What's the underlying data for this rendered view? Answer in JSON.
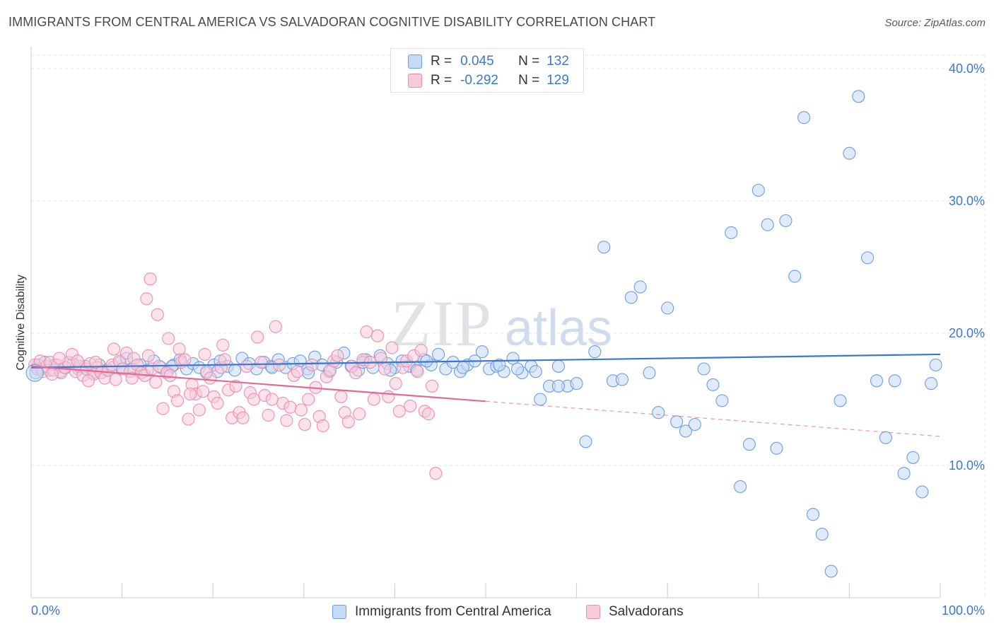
{
  "title": "IMMIGRANTS FROM CENTRAL AMERICA VS SALVADORAN COGNITIVE DISABILITY CORRELATION CHART",
  "source": "Source: ZipAtlas.com",
  "watermark": {
    "zip": "ZIP",
    "atlas": "atlas"
  },
  "stats": [
    {
      "r_label": "R =",
      "r_value": "0.045",
      "n_label": "N =",
      "n_value": "132",
      "color": "#6c9ee0",
      "fill": "#c5daf6"
    },
    {
      "r_label": "R =",
      "r_value": "-0.292",
      "n_label": "N =",
      "n_value": "129",
      "color": "#ec8fae",
      "fill": "#f9cad9"
    }
  ],
  "legend": [
    {
      "label": "Immigrants from Central America",
      "color": "#6c9ee0",
      "fill": "#c5daf6"
    },
    {
      "label": "Salvadorans",
      "color": "#ec8fae",
      "fill": "#f9cad9"
    }
  ],
  "chart_data": {
    "type": "scatter",
    "title": "IMMIGRANTS FROM CENTRAL AMERICA VS SALVADORAN COGNITIVE DISABILITY CORRELATION CHART",
    "xlabel": "",
    "ylabel": "Cognitive Disability",
    "xlim": [
      0,
      100
    ],
    "ylim": [
      0,
      40
    ],
    "x_ticks": [
      "0.0%",
      "100.0%"
    ],
    "y_ticks": [
      {
        "value": 10,
        "label": "10.0%"
      },
      {
        "value": 20,
        "label": "20.0%"
      },
      {
        "value": 30,
        "label": "30.0%"
      },
      {
        "value": 40,
        "label": "40.0%"
      }
    ],
    "grid": true,
    "legend_position": "bottom",
    "series": [
      {
        "name": "Immigrants from Central America",
        "color": "#3a78d0",
        "fill": "#c5daf6",
        "edge": "#6c9ee0",
        "trend": {
          "x": [
            0,
            100
          ],
          "y": [
            17.4,
            18.4
          ],
          "dash_from": null
        },
        "points": [
          [
            0.5,
            17.0
          ],
          [
            0.8,
            17.6
          ],
          [
            1.1,
            17.3
          ],
          [
            1.5,
            17.8
          ],
          [
            2.0,
            17.2
          ],
          [
            2.6,
            17.6
          ],
          [
            3.2,
            17.1
          ],
          [
            3.8,
            17.4
          ],
          [
            4.6,
            17.7
          ],
          [
            5.2,
            17.3
          ],
          [
            6.0,
            17.5
          ],
          [
            6.8,
            17.0
          ],
          [
            7.5,
            17.6
          ],
          [
            8.3,
            17.2
          ],
          [
            9.0,
            17.4
          ],
          [
            9.8,
            17.8
          ],
          [
            10.5,
            18.1
          ],
          [
            11.2,
            17.3
          ],
          [
            12.0,
            17.6
          ],
          [
            12.8,
            17.2
          ],
          [
            13.5,
            17.9
          ],
          [
            14.3,
            17.4
          ],
          [
            15.0,
            17.1
          ],
          [
            15.7,
            17.6
          ],
          [
            16.4,
            18.0
          ],
          [
            17.1,
            17.3
          ],
          [
            17.8,
            17.7
          ],
          [
            18.5,
            17.4
          ],
          [
            19.3,
            17.0
          ],
          [
            20.1,
            17.6
          ],
          [
            20.8,
            17.9
          ],
          [
            21.6,
            17.5
          ],
          [
            22.4,
            17.2
          ],
          [
            23.2,
            18.1
          ],
          [
            24.0,
            17.7
          ],
          [
            24.8,
            17.3
          ],
          [
            25.6,
            17.8
          ],
          [
            26.4,
            17.5
          ],
          [
            27.2,
            18.0
          ],
          [
            28.0,
            17.4
          ],
          [
            28.8,
            17.7
          ],
          [
            29.6,
            17.9
          ],
          [
            30.4,
            17.3
          ],
          [
            31.2,
            18.2
          ],
          [
            32.0,
            17.6
          ],
          [
            32.8,
            17.1
          ],
          [
            33.6,
            17.8
          ],
          [
            34.4,
            18.5
          ],
          [
            35.2,
            17.5
          ],
          [
            36.0,
            17.2
          ],
          [
            36.8,
            18.0
          ],
          [
            37.6,
            17.4
          ],
          [
            38.4,
            18.3
          ],
          [
            39.2,
            17.7
          ],
          [
            40.0,
            17.4
          ],
          [
            40.8,
            17.9
          ],
          [
            41.6,
            17.5
          ],
          [
            42.4,
            17.2
          ],
          [
            43.2,
            18.0
          ],
          [
            44.0,
            17.6
          ],
          [
            44.8,
            18.4
          ],
          [
            45.6,
            17.3
          ],
          [
            46.4,
            17.8
          ],
          [
            47.2,
            17.1
          ],
          [
            48.0,
            17.6
          ],
          [
            48.8,
            17.9
          ],
          [
            49.6,
            18.6
          ],
          [
            50.4,
            17.3
          ],
          [
            51.2,
            17.5
          ],
          [
            52.0,
            17.1
          ],
          [
            53.0,
            18.1
          ],
          [
            54.0,
            17.0
          ],
          [
            55.0,
            17.5
          ],
          [
            56.0,
            15.0
          ],
          [
            57.0,
            16.0
          ],
          [
            58.0,
            17.5
          ],
          [
            59.0,
            16.0
          ],
          [
            60.0,
            16.2
          ],
          [
            61.0,
            11.8
          ],
          [
            62.0,
            18.6
          ],
          [
            63.0,
            26.5
          ],
          [
            64.0,
            16.4
          ],
          [
            65.0,
            16.5
          ],
          [
            66.0,
            22.7
          ],
          [
            67.0,
            23.5
          ],
          [
            68.0,
            17.0
          ],
          [
            69.0,
            14.0
          ],
          [
            70.0,
            21.9
          ],
          [
            71.0,
            13.3
          ],
          [
            72.0,
            12.6
          ],
          [
            73.0,
            13.1
          ],
          [
            74.0,
            17.3
          ],
          [
            75.0,
            16.1
          ],
          [
            76.0,
            14.9
          ],
          [
            77.0,
            27.6
          ],
          [
            78.0,
            8.4
          ],
          [
            79.0,
            11.6
          ],
          [
            80.0,
            30.8
          ],
          [
            81.0,
            28.2
          ],
          [
            82.0,
            11.3
          ],
          [
            83.0,
            28.5
          ],
          [
            84.0,
            24.3
          ],
          [
            85.0,
            36.3
          ],
          [
            86.0,
            6.3
          ],
          [
            87.0,
            4.8
          ],
          [
            88.0,
            2.0
          ],
          [
            89.0,
            14.9
          ],
          [
            90.0,
            33.6
          ],
          [
            91.0,
            37.9
          ],
          [
            92.0,
            25.7
          ],
          [
            93.0,
            16.4
          ],
          [
            94.0,
            12.1
          ],
          [
            95.0,
            16.4
          ],
          [
            96.0,
            9.4
          ],
          [
            97.0,
            10.6
          ],
          [
            98.0,
            8.0
          ],
          [
            99.0,
            16.2
          ],
          [
            99.5,
            17.6
          ],
          [
            58.0,
            16.0
          ],
          [
            55.5,
            17.1
          ],
          [
            53.5,
            17.3
          ],
          [
            51.5,
            17.6
          ],
          [
            47.5,
            17.4
          ],
          [
            43.5,
            17.9
          ],
          [
            39.5,
            17.2
          ],
          [
            36.5,
            17.8
          ],
          [
            30.5,
            17.0
          ],
          [
            26.5,
            17.4
          ],
          [
            20.5,
            17.1
          ],
          [
            15.5,
            17.5
          ],
          [
            10.0,
            17.3
          ]
        ]
      },
      {
        "name": "Salvadorans",
        "color": "#e06b96",
        "fill": "#f9cad9",
        "edge": "#ec8fae",
        "trend": {
          "x": [
            0,
            100
          ],
          "y": [
            17.5,
            12.2
          ],
          "dash_from": 50
        },
        "points": [
          [
            0.4,
            17.6
          ],
          [
            0.7,
            17.3
          ],
          [
            1.0,
            17.9
          ],
          [
            1.3,
            17.1
          ],
          [
            1.7,
            17.5
          ],
          [
            2.1,
            17.8
          ],
          [
            2.5,
            17.2
          ],
          [
            2.9,
            17.6
          ],
          [
            3.3,
            17.0
          ],
          [
            3.7,
            17.4
          ],
          [
            4.1,
            17.8
          ],
          [
            4.5,
            18.4
          ],
          [
            4.9,
            17.1
          ],
          [
            5.3,
            17.5
          ],
          [
            5.7,
            16.8
          ],
          [
            6.1,
            17.3
          ],
          [
            6.5,
            17.7
          ],
          [
            6.9,
            16.9
          ],
          [
            7.3,
            17.4
          ],
          [
            7.7,
            17.0
          ],
          [
            8.1,
            16.6
          ],
          [
            8.5,
            17.2
          ],
          [
            8.9,
            17.6
          ],
          [
            9.3,
            16.5
          ],
          [
            9.7,
            17.9
          ],
          [
            10.1,
            17.3
          ],
          [
            10.5,
            18.5
          ],
          [
            10.9,
            17.1
          ],
          [
            11.3,
            18.1
          ],
          [
            11.7,
            17.6
          ],
          [
            12.1,
            17.0
          ],
          [
            12.5,
            16.8
          ],
          [
            12.9,
            18.3
          ],
          [
            13.3,
            17.3
          ],
          [
            13.7,
            16.3
          ],
          [
            14.1,
            17.5
          ],
          [
            14.5,
            14.3
          ],
          [
            14.9,
            17.0
          ],
          [
            15.3,
            16.8
          ],
          [
            15.7,
            15.6
          ],
          [
            16.1,
            14.9
          ],
          [
            16.5,
            17.8
          ],
          [
            16.9,
            18.0
          ],
          [
            17.3,
            13.5
          ],
          [
            17.7,
            16.1
          ],
          [
            18.1,
            15.4
          ],
          [
            18.5,
            14.2
          ],
          [
            18.9,
            15.6
          ],
          [
            19.3,
            17.1
          ],
          [
            19.7,
            16.6
          ],
          [
            20.1,
            15.2
          ],
          [
            20.5,
            14.7
          ],
          [
            20.9,
            17.4
          ],
          [
            21.3,
            18.0
          ],
          [
            21.7,
            15.7
          ],
          [
            22.1,
            13.6
          ],
          [
            22.5,
            16.0
          ],
          [
            22.9,
            14.0
          ],
          [
            23.3,
            13.6
          ],
          [
            23.7,
            17.5
          ],
          [
            24.1,
            15.5
          ],
          [
            24.5,
            15.0
          ],
          [
            24.9,
            19.7
          ],
          [
            25.3,
            17.8
          ],
          [
            25.7,
            15.3
          ],
          [
            26.1,
            13.8
          ],
          [
            26.5,
            15.0
          ],
          [
            26.9,
            20.5
          ],
          [
            27.3,
            17.6
          ],
          [
            27.7,
            14.7
          ],
          [
            28.1,
            13.4
          ],
          [
            28.5,
            14.4
          ],
          [
            28.9,
            16.8
          ],
          [
            29.3,
            17.1
          ],
          [
            29.7,
            14.2
          ],
          [
            30.1,
            13.1
          ],
          [
            30.5,
            15.0
          ],
          [
            30.9,
            17.6
          ],
          [
            31.3,
            15.9
          ],
          [
            31.7,
            13.7
          ],
          [
            32.1,
            13.0
          ],
          [
            32.5,
            16.7
          ],
          [
            32.9,
            17.2
          ],
          [
            33.3,
            17.9
          ],
          [
            33.7,
            18.3
          ],
          [
            34.1,
            15.2
          ],
          [
            34.5,
            14.0
          ],
          [
            34.9,
            13.3
          ],
          [
            35.3,
            17.5
          ],
          [
            35.7,
            17.0
          ],
          [
            36.1,
            13.9
          ],
          [
            36.5,
            18.0
          ],
          [
            36.9,
            20.1
          ],
          [
            37.3,
            17.8
          ],
          [
            37.7,
            15.0
          ],
          [
            38.1,
            19.8
          ],
          [
            38.5,
            18.1
          ],
          [
            38.9,
            17.3
          ],
          [
            39.3,
            15.2
          ],
          [
            39.7,
            18.9
          ],
          [
            40.1,
            16.2
          ],
          [
            40.5,
            14.1
          ],
          [
            40.9,
            17.4
          ],
          [
            41.3,
            17.9
          ],
          [
            41.7,
            14.5
          ],
          [
            42.1,
            18.3
          ],
          [
            42.5,
            17.1
          ],
          [
            42.9,
            18.7
          ],
          [
            43.3,
            14.1
          ],
          [
            43.7,
            13.9
          ],
          [
            44.1,
            16.0
          ],
          [
            44.5,
            9.4
          ],
          [
            2.3,
            16.9
          ],
          [
            3.1,
            18.1
          ],
          [
            5.1,
            17.9
          ],
          [
            6.3,
            16.4
          ],
          [
            7.1,
            17.8
          ],
          [
            9.1,
            18.8
          ],
          [
            11.1,
            16.6
          ],
          [
            12.7,
            22.6
          ],
          [
            13.1,
            24.1
          ],
          [
            13.9,
            21.4
          ],
          [
            15.1,
            19.6
          ],
          [
            16.3,
            18.8
          ],
          [
            17.5,
            15.4
          ],
          [
            19.1,
            18.4
          ],
          [
            21.1,
            19.1
          ]
        ]
      }
    ]
  }
}
